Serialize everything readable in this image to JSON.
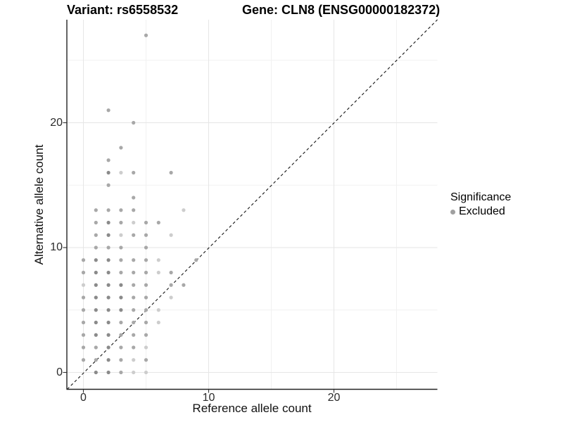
{
  "titles": {
    "left": "Variant: rs6558532",
    "right": "Gene: CLN8 (ENSG00000182372)"
  },
  "legend": {
    "title": "Significance",
    "items": [
      {
        "label": "Excluded",
        "color": "#a0a0a0"
      }
    ]
  },
  "chart_data": {
    "type": "scatter",
    "xlabel": "Reference allele count",
    "ylabel": "Alternative allele count",
    "xlim": [
      -1.3,
      28.3
    ],
    "ylim": [
      -1.4,
      28.3
    ],
    "xticks": [
      0,
      10,
      20
    ],
    "yticks": [
      0,
      10,
      20
    ],
    "grid": {
      "on": true,
      "major": [
        0,
        10,
        20
      ],
      "minor": [
        5,
        15,
        25
      ]
    },
    "identity_line": {
      "equation": "y = x",
      "style": "dashed",
      "color": "#141414"
    },
    "legend_position": "right",
    "shade_colors": {
      "1": "#cdcdcd",
      "2": "#a8a8a8",
      "3": "#8a8a8a"
    },
    "series": [
      {
        "name": "Excluded",
        "points": [
          [
            1,
            0,
            3
          ],
          [
            2,
            0,
            3
          ],
          [
            3,
            0,
            2
          ],
          [
            4,
            0,
            1
          ],
          [
            5,
            0,
            1
          ],
          [
            0,
            1,
            2
          ],
          [
            1,
            1,
            2
          ],
          [
            2,
            1,
            3
          ],
          [
            3,
            1,
            2
          ],
          [
            4,
            1,
            1
          ],
          [
            5,
            1,
            2
          ],
          [
            0,
            2,
            2
          ],
          [
            1,
            2,
            2
          ],
          [
            2,
            2,
            3
          ],
          [
            3,
            2,
            2
          ],
          [
            4,
            2,
            2
          ],
          [
            5,
            2,
            1
          ],
          [
            0,
            3,
            2
          ],
          [
            1,
            3,
            3
          ],
          [
            2,
            3,
            3
          ],
          [
            3,
            3,
            2
          ],
          [
            4,
            3,
            2
          ],
          [
            5,
            3,
            2
          ],
          [
            0,
            4,
            2
          ],
          [
            1,
            4,
            3
          ],
          [
            2,
            4,
            3
          ],
          [
            3,
            4,
            2
          ],
          [
            4,
            4,
            2
          ],
          [
            5,
            4,
            2
          ],
          [
            6,
            4,
            1
          ],
          [
            0,
            5,
            2
          ],
          [
            1,
            5,
            3
          ],
          [
            2,
            5,
            3
          ],
          [
            3,
            5,
            3
          ],
          [
            4,
            5,
            2
          ],
          [
            5,
            5,
            2
          ],
          [
            6,
            5,
            1
          ],
          [
            0,
            6,
            2
          ],
          [
            1,
            6,
            3
          ],
          [
            2,
            6,
            3
          ],
          [
            3,
            6,
            3
          ],
          [
            4,
            6,
            2
          ],
          [
            5,
            6,
            2
          ],
          [
            7,
            6,
            1
          ],
          [
            0,
            7,
            1
          ],
          [
            1,
            7,
            3
          ],
          [
            2,
            7,
            3
          ],
          [
            3,
            7,
            3
          ],
          [
            4,
            7,
            2
          ],
          [
            5,
            7,
            2
          ],
          [
            7,
            7,
            2
          ],
          [
            8,
            7,
            2
          ],
          [
            0,
            8,
            2
          ],
          [
            1,
            8,
            3
          ],
          [
            2,
            8,
            3
          ],
          [
            3,
            8,
            2
          ],
          [
            4,
            8,
            2
          ],
          [
            5,
            8,
            2
          ],
          [
            6,
            8,
            1
          ],
          [
            7,
            8,
            2
          ],
          [
            0,
            9,
            2
          ],
          [
            1,
            9,
            3
          ],
          [
            2,
            9,
            3
          ],
          [
            3,
            9,
            2
          ],
          [
            4,
            9,
            2
          ],
          [
            5,
            9,
            2
          ],
          [
            6,
            9,
            1
          ],
          [
            9,
            9,
            2
          ],
          [
            1,
            10,
            2
          ],
          [
            2,
            10,
            2
          ],
          [
            3,
            10,
            2
          ],
          [
            5,
            10,
            2
          ],
          [
            1,
            11,
            2
          ],
          [
            2,
            11,
            3
          ],
          [
            3,
            11,
            1
          ],
          [
            4,
            11,
            2
          ],
          [
            5,
            11,
            2
          ],
          [
            7,
            11,
            1
          ],
          [
            1,
            12,
            2
          ],
          [
            2,
            12,
            3
          ],
          [
            3,
            12,
            2
          ],
          [
            4,
            12,
            1
          ],
          [
            5,
            12,
            2
          ],
          [
            6,
            12,
            2
          ],
          [
            1,
            13,
            2
          ],
          [
            2,
            13,
            2
          ],
          [
            3,
            13,
            2
          ],
          [
            4,
            13,
            2
          ],
          [
            8,
            13,
            1
          ],
          [
            4,
            14,
            2
          ],
          [
            2,
            15,
            2
          ],
          [
            2,
            16,
            3
          ],
          [
            3,
            16,
            1
          ],
          [
            4,
            16,
            2
          ],
          [
            7,
            16,
            2
          ],
          [
            2,
            17,
            2
          ],
          [
            3,
            18,
            2
          ],
          [
            4,
            20,
            2
          ],
          [
            2,
            21,
            2
          ],
          [
            5,
            27,
            2
          ]
        ]
      }
    ]
  }
}
